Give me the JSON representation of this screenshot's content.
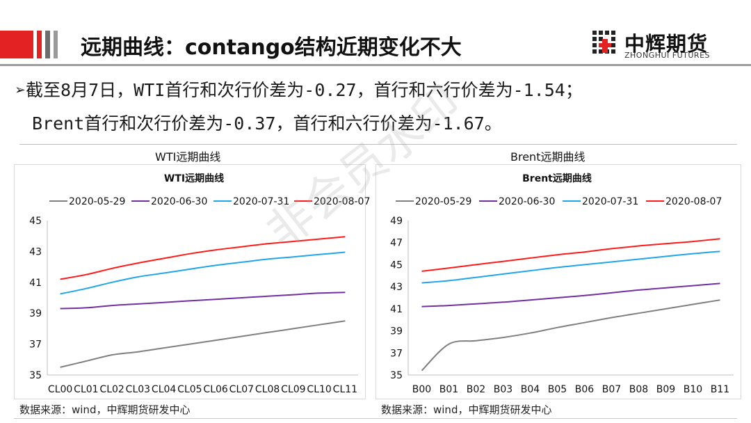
{
  "header": {
    "title": "远期曲线：contango结构近期变化不大",
    "accent_color": "#e32224"
  },
  "logo": {
    "name_cn": "中辉期货",
    "name_en": "ZHONGHUI FUTURES"
  },
  "bullets": [
    "➢截至8月7日，WTI首行和次行价差为-0.27，首行和六行价差为-1.54；",
    "Brent首行和次行价差为-0.37，首行和六行价差为-1.67。"
  ],
  "watermark": "非会员水印",
  "panels": [
    {
      "caption": "WTI远期曲线",
      "source": "数据来源：wind，中辉期货研发中心"
    },
    {
      "caption": "Brent远期曲线",
      "source": "数据来源：wind，中辉期货研发中心"
    }
  ],
  "chart_data": [
    {
      "type": "line",
      "title": "WTI远期曲线",
      "categories": [
        "CL00",
        "CL01",
        "CL02",
        "CL03",
        "CL04",
        "CL05",
        "CL06",
        "CL07",
        "CL08",
        "CL09",
        "CL10",
        "CL11"
      ],
      "ylim": [
        35,
        45
      ],
      "yticks": [
        35,
        37,
        39,
        41,
        43,
        45
      ],
      "grid": false,
      "legend_position": "top",
      "series": [
        {
          "name": "2020-05-29",
          "color": "#7f7f7f",
          "values": [
            35.5,
            35.9,
            36.3,
            36.5,
            36.75,
            37.0,
            37.25,
            37.5,
            37.75,
            38.0,
            38.25,
            38.5
          ]
        },
        {
          "name": "2020-06-30",
          "color": "#7030a0",
          "values": [
            39.3,
            39.35,
            39.5,
            39.6,
            39.7,
            39.8,
            39.9,
            40.0,
            40.1,
            40.2,
            40.3,
            40.35
          ]
        },
        {
          "name": "2020-07-31",
          "color": "#1fa6e8",
          "values": [
            40.25,
            40.6,
            41.0,
            41.35,
            41.6,
            41.85,
            42.1,
            42.3,
            42.5,
            42.65,
            42.8,
            42.95
          ]
        },
        {
          "name": "2020-08-07",
          "color": "#ff1a1a",
          "values": [
            41.2,
            41.5,
            41.9,
            42.25,
            42.55,
            42.85,
            43.1,
            43.3,
            43.5,
            43.65,
            43.8,
            43.95
          ]
        }
      ]
    },
    {
      "type": "line",
      "title": "Brent远期曲线",
      "categories": [
        "B00",
        "B01",
        "B02",
        "B03",
        "B04",
        "B05",
        "B06",
        "B07",
        "B08",
        "B09",
        "B10",
        "B11"
      ],
      "ylim": [
        35,
        49
      ],
      "yticks": [
        35,
        37,
        39,
        41,
        43,
        45,
        47,
        49
      ],
      "grid": false,
      "legend_position": "top",
      "series": [
        {
          "name": "2020-05-29",
          "color": "#7f7f7f",
          "values": [
            35.4,
            37.8,
            38.1,
            38.4,
            38.8,
            39.3,
            39.75,
            40.2,
            40.6,
            41.0,
            41.4,
            41.8
          ]
        },
        {
          "name": "2020-06-30",
          "color": "#7030a0",
          "values": [
            41.2,
            41.3,
            41.45,
            41.6,
            41.8,
            42.0,
            42.2,
            42.45,
            42.7,
            42.9,
            43.1,
            43.3
          ]
        },
        {
          "name": "2020-07-31",
          "color": "#1fa6e8",
          "values": [
            43.35,
            43.55,
            43.85,
            44.15,
            44.45,
            44.75,
            45.0,
            45.25,
            45.5,
            45.75,
            46.0,
            46.2
          ]
        },
        {
          "name": "2020-08-07",
          "color": "#ff1a1a",
          "values": [
            44.4,
            44.7,
            45.0,
            45.3,
            45.6,
            45.9,
            46.15,
            46.45,
            46.7,
            46.9,
            47.1,
            47.35
          ]
        }
      ]
    }
  ]
}
